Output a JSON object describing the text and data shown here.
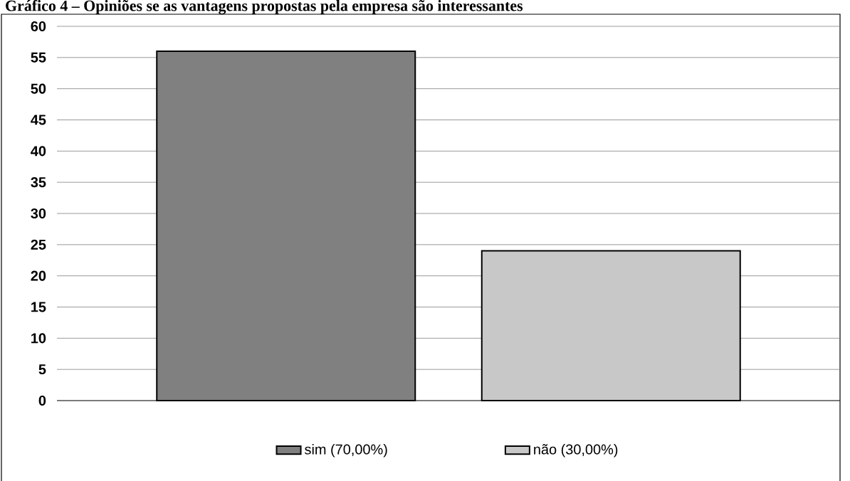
{
  "chart_data": {
    "type": "bar",
    "title": "Gráfico 4 – Opiniões se as vantagens propostas pela empresa são interessantes",
    "categories": [
      null
    ],
    "series": [
      {
        "name": "sim  (70,00%)",
        "color": "#808080",
        "values": [
          56
        ]
      },
      {
        "name": "não   (30,00%)",
        "color": "#c8c8c8",
        "values": [
          24
        ]
      }
    ],
    "ylim": [
      0,
      60
    ],
    "yticks": [
      0,
      5,
      10,
      15,
      20,
      25,
      30,
      35,
      40,
      45,
      50,
      55,
      60
    ],
    "grid": "y",
    "legend": "bottom"
  }
}
